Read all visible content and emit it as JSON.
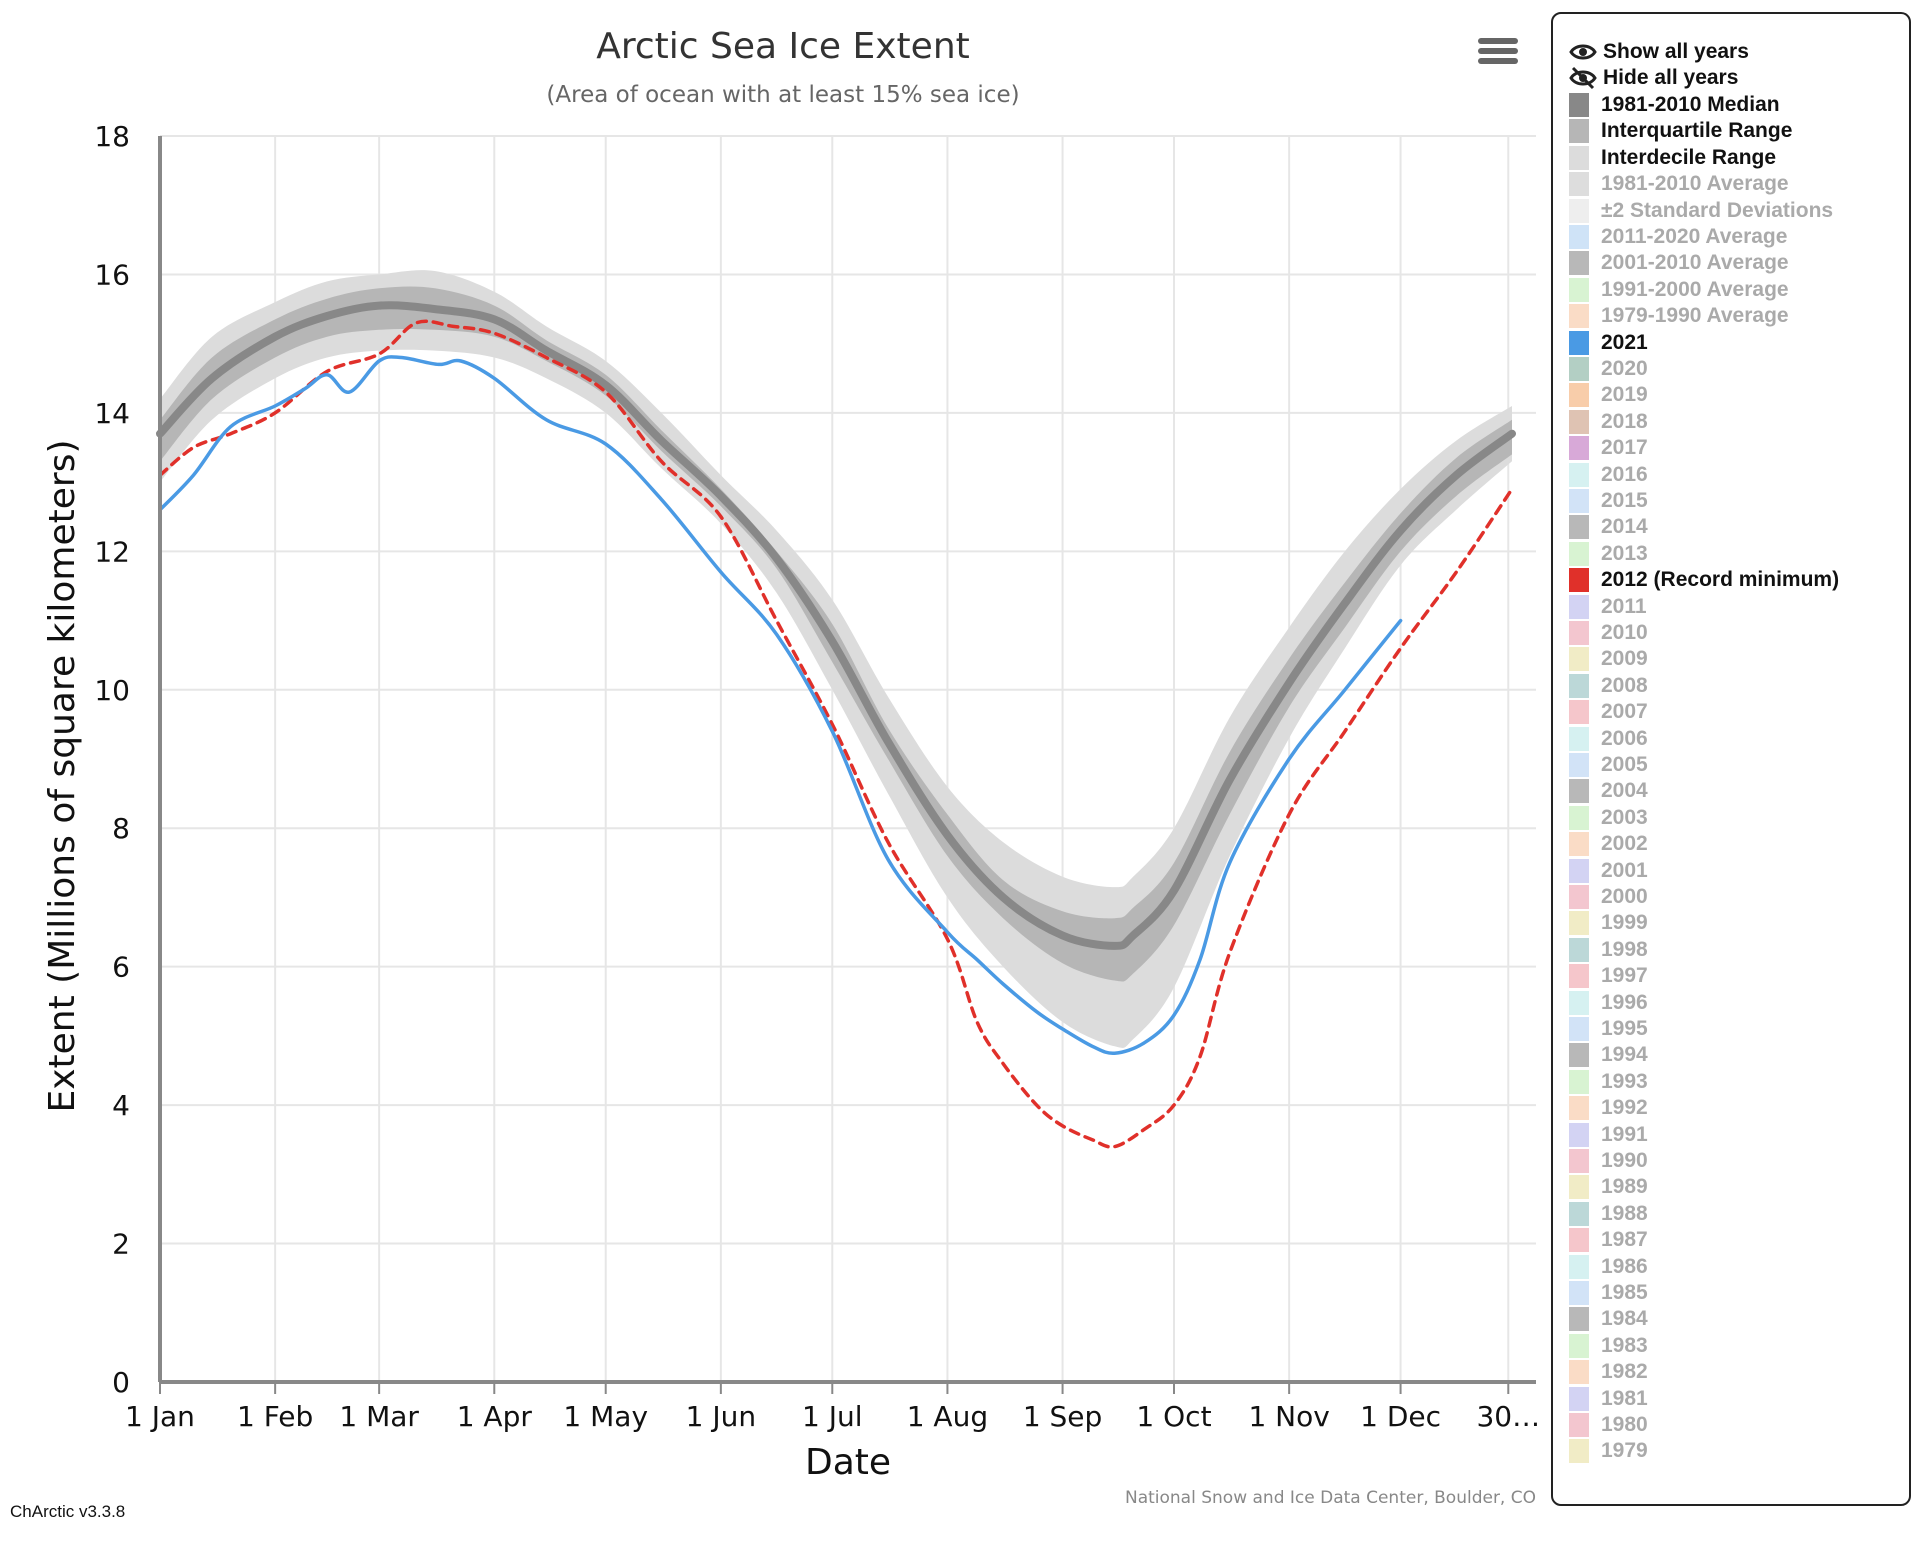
{
  "chart_data": {
    "type": "line",
    "title": "Arctic Sea Ice Extent",
    "subtitle": "(Area of ocean with at least 15% sea ice)",
    "xlabel": "Date",
    "ylabel": "Extent (Millions of square kilometers)",
    "ylim": [
      0,
      18
    ],
    "xlim": [
      1,
      365
    ],
    "yticks": [
      0,
      2,
      4,
      6,
      8,
      10,
      12,
      14,
      16,
      18
    ],
    "xticks": [
      {
        "label": "1 Jan",
        "day": 1
      },
      {
        "label": "1 Feb",
        "day": 32
      },
      {
        "label": "1 Mar",
        "day": 60
      },
      {
        "label": "1 Apr",
        "day": 91
      },
      {
        "label": "1 May",
        "day": 121
      },
      {
        "label": "1 Jun",
        "day": 152
      },
      {
        "label": "1 Jul",
        "day": 182
      },
      {
        "label": "1 Aug",
        "day": 213
      },
      {
        "label": "1 Sep",
        "day": 244
      },
      {
        "label": "1 Oct",
        "day": 274
      },
      {
        "label": "1 Nov",
        "day": 305
      },
      {
        "label": "1 Dec",
        "day": 335
      },
      {
        "label": "30…",
        "day": 364
      }
    ],
    "grid": true,
    "legend_position": "right",
    "credit": "National Snow and Ice Data Center, Boulder, CO",
    "bands": [
      {
        "name": "Interdecile Range",
        "color": "#dcdcdc",
        "x": [
          1,
          15,
          32,
          46,
          60,
          75,
          91,
          105,
          121,
          136,
          152,
          167,
          182,
          197,
          213,
          228,
          244,
          258,
          263,
          274,
          289,
          305,
          320,
          335,
          350,
          365
        ],
        "low": [
          13.0,
          13.9,
          14.5,
          14.8,
          14.9,
          14.9,
          14.8,
          14.5,
          14.0,
          13.2,
          12.4,
          11.4,
          10.0,
          8.5,
          7.0,
          6.0,
          5.2,
          4.85,
          4.95,
          5.7,
          7.6,
          9.3,
          10.6,
          11.8,
          12.6,
          13.3
        ],
        "high": [
          14.2,
          15.1,
          15.6,
          15.9,
          16.0,
          16.05,
          15.75,
          15.25,
          14.75,
          14.0,
          13.1,
          12.3,
          11.3,
          9.9,
          8.6,
          7.8,
          7.3,
          7.15,
          7.3,
          8.0,
          9.6,
          10.9,
          12.0,
          12.9,
          13.6,
          14.1
        ]
      },
      {
        "name": "Interquartile Range",
        "color": "#b6b6b6",
        "x": [
          1,
          15,
          32,
          46,
          60,
          75,
          91,
          105,
          121,
          136,
          152,
          167,
          182,
          197,
          213,
          228,
          244,
          258,
          263,
          274,
          289,
          305,
          320,
          335,
          350,
          365
        ],
        "low": [
          13.3,
          14.2,
          14.8,
          15.1,
          15.2,
          15.2,
          15.1,
          14.75,
          14.25,
          13.45,
          12.65,
          11.75,
          10.4,
          9.0,
          7.6,
          6.7,
          6.05,
          5.8,
          5.9,
          6.6,
          8.2,
          9.75,
          10.9,
          12.0,
          12.8,
          13.4
        ],
        "high": [
          13.9,
          14.8,
          15.35,
          15.65,
          15.8,
          15.8,
          15.55,
          15.05,
          14.55,
          13.75,
          12.9,
          12.0,
          10.95,
          9.45,
          8.2,
          7.25,
          6.8,
          6.7,
          6.85,
          7.5,
          9.1,
          10.45,
          11.55,
          12.55,
          13.35,
          13.9
        ]
      }
    ],
    "series": [
      {
        "name": "1981-2010 Median",
        "color": "#888888",
        "dash": "none",
        "x": [
          1,
          15,
          32,
          46,
          60,
          75,
          91,
          105,
          121,
          136,
          152,
          167,
          182,
          197,
          213,
          228,
          244,
          258,
          263,
          274,
          289,
          305,
          320,
          335,
          350,
          365
        ],
        "y": [
          13.7,
          14.5,
          15.1,
          15.4,
          15.55,
          15.5,
          15.35,
          14.9,
          14.4,
          13.6,
          12.8,
          11.9,
          10.7,
          9.25,
          7.9,
          7.0,
          6.45,
          6.3,
          6.45,
          7.1,
          8.7,
          10.1,
          11.25,
          12.3,
          13.1,
          13.7
        ]
      },
      {
        "name": "2012 (Record minimum)",
        "color": "#e0302a",
        "dash": "9,7",
        "x": [
          1,
          10,
          20,
          32,
          46,
          60,
          70,
          80,
          91,
          105,
          121,
          136,
          152,
          167,
          182,
          197,
          213,
          221,
          228,
          237,
          244,
          252,
          258,
          266,
          274,
          281,
          289,
          305,
          320,
          335,
          350,
          365
        ],
        "y": [
          13.1,
          13.5,
          13.7,
          14.0,
          14.6,
          14.85,
          15.3,
          15.25,
          15.15,
          14.8,
          14.3,
          13.3,
          12.5,
          11.0,
          9.5,
          7.8,
          6.4,
          5.2,
          4.6,
          4.0,
          3.7,
          3.5,
          3.4,
          3.65,
          4.0,
          4.7,
          6.2,
          8.2,
          9.4,
          10.6,
          11.7,
          12.9
        ]
      },
      {
        "name": "2021",
        "color": "#4a9ae4",
        "dash": "none",
        "x": [
          1,
          10,
          20,
          32,
          40,
          46,
          52,
          60,
          66,
          76,
          82,
          91,
          105,
          121,
          136,
          152,
          167,
          182,
          197,
          213,
          221,
          228,
          237,
          244,
          252,
          258,
          266,
          274,
          281,
          289,
          305,
          320,
          335
        ],
        "y": [
          12.6,
          13.1,
          13.8,
          14.1,
          14.35,
          14.55,
          14.3,
          14.75,
          14.8,
          14.7,
          14.75,
          14.5,
          13.9,
          13.55,
          12.75,
          11.7,
          10.8,
          9.4,
          7.55,
          6.5,
          6.1,
          5.75,
          5.35,
          5.1,
          4.85,
          4.75,
          4.9,
          5.3,
          6.1,
          7.5,
          9.0,
          10.0,
          11.0
        ]
      }
    ]
  },
  "menu_icon": "hamburger-menu-icon",
  "version": "ChArctic v3.3.8",
  "legend": {
    "controls": [
      {
        "label": "Show all years",
        "icon": "eye-icon"
      },
      {
        "label": "Hide all years",
        "icon": "eye-slash-icon"
      }
    ],
    "items": [
      {
        "label": "1981-2010 Median",
        "color": "#888888",
        "active": true
      },
      {
        "label": "Interquartile Range",
        "color": "#b6b6b6",
        "active": true
      },
      {
        "label": "Interdecile Range",
        "color": "#dcdcdc",
        "active": true
      },
      {
        "label": "1981-2010 Average",
        "color": "#dddddd",
        "active": false
      },
      {
        "label": "±2 Standard Deviations",
        "color": "#eeeeee",
        "active": false
      },
      {
        "label": "2011-2020 Average",
        "color": "#cfe3f7",
        "active": false
      },
      {
        "label": "2001-2010 Average",
        "color": "#b8b8b8",
        "active": false
      },
      {
        "label": "1991-2000 Average",
        "color": "#d8f3d2",
        "active": false
      },
      {
        "label": "1979-1990 Average",
        "color": "#fadcc6",
        "active": false
      },
      {
        "label": "2021",
        "color": "#4a9ae4",
        "active": true
      },
      {
        "label": "2020",
        "color": "#b3cfc4",
        "active": false
      },
      {
        "label": "2019",
        "color": "#f8cdaa",
        "active": false
      },
      {
        "label": "2018",
        "color": "#dfc3b3",
        "active": false
      },
      {
        "label": "2017",
        "color": "#d8a9d8",
        "active": false
      },
      {
        "label": "2016",
        "color": "#d6f1f1",
        "active": false
      },
      {
        "label": "2015",
        "color": "#d2e3f7",
        "active": false
      },
      {
        "label": "2014",
        "color": "#b8b8b8",
        "active": false
      },
      {
        "label": "2013",
        "color": "#d8f3d2",
        "active": false
      },
      {
        "label": "2012 (Record minimum)",
        "color": "#e0302a",
        "active": true
      },
      {
        "label": "2011",
        "color": "#d3d3f3",
        "active": false
      },
      {
        "label": "2010",
        "color": "#f3c6cf",
        "active": false
      },
      {
        "label": "2009",
        "color": "#f1ecc6",
        "active": false
      },
      {
        "label": "2008",
        "color": "#bcd8d8",
        "active": false
      },
      {
        "label": "2007",
        "color": "#f5c6cb",
        "active": false
      },
      {
        "label": "2006",
        "color": "#d6f1f1",
        "active": false
      },
      {
        "label": "2005",
        "color": "#d2e3f7",
        "active": false
      },
      {
        "label": "2004",
        "color": "#b8b8b8",
        "active": false
      },
      {
        "label": "2003",
        "color": "#d8f3d2",
        "active": false
      },
      {
        "label": "2002",
        "color": "#fadcc6",
        "active": false
      },
      {
        "label": "2001",
        "color": "#d3d3f3",
        "active": false
      },
      {
        "label": "2000",
        "color": "#f3c6cf",
        "active": false
      },
      {
        "label": "1999",
        "color": "#f1ecc6",
        "active": false
      },
      {
        "label": "1998",
        "color": "#bcd8d8",
        "active": false
      },
      {
        "label": "1997",
        "color": "#f5c6cb",
        "active": false
      },
      {
        "label": "1996",
        "color": "#d6f1f1",
        "active": false
      },
      {
        "label": "1995",
        "color": "#d2e3f7",
        "active": false
      },
      {
        "label": "1994",
        "color": "#b8b8b8",
        "active": false
      },
      {
        "label": "1993",
        "color": "#d8f3d2",
        "active": false
      },
      {
        "label": "1992",
        "color": "#fadcc6",
        "active": false
      },
      {
        "label": "1991",
        "color": "#d3d3f3",
        "active": false
      },
      {
        "label": "1990",
        "color": "#f3c6cf",
        "active": false
      },
      {
        "label": "1989",
        "color": "#f1ecc6",
        "active": false
      },
      {
        "label": "1988",
        "color": "#bcd8d8",
        "active": false
      },
      {
        "label": "1987",
        "color": "#f5c6cb",
        "active": false
      },
      {
        "label": "1986",
        "color": "#d6f1f1",
        "active": false
      },
      {
        "label": "1985",
        "color": "#d2e3f7",
        "active": false
      },
      {
        "label": "1984",
        "color": "#b8b8b8",
        "active": false
      },
      {
        "label": "1983",
        "color": "#d8f3d2",
        "active": false
      },
      {
        "label": "1982",
        "color": "#fadcc6",
        "active": false
      },
      {
        "label": "1981",
        "color": "#d3d3f3",
        "active": false
      },
      {
        "label": "1980",
        "color": "#f3c6cf",
        "active": false
      },
      {
        "label": "1979",
        "color": "#f1ecc6",
        "active": false
      }
    ]
  }
}
